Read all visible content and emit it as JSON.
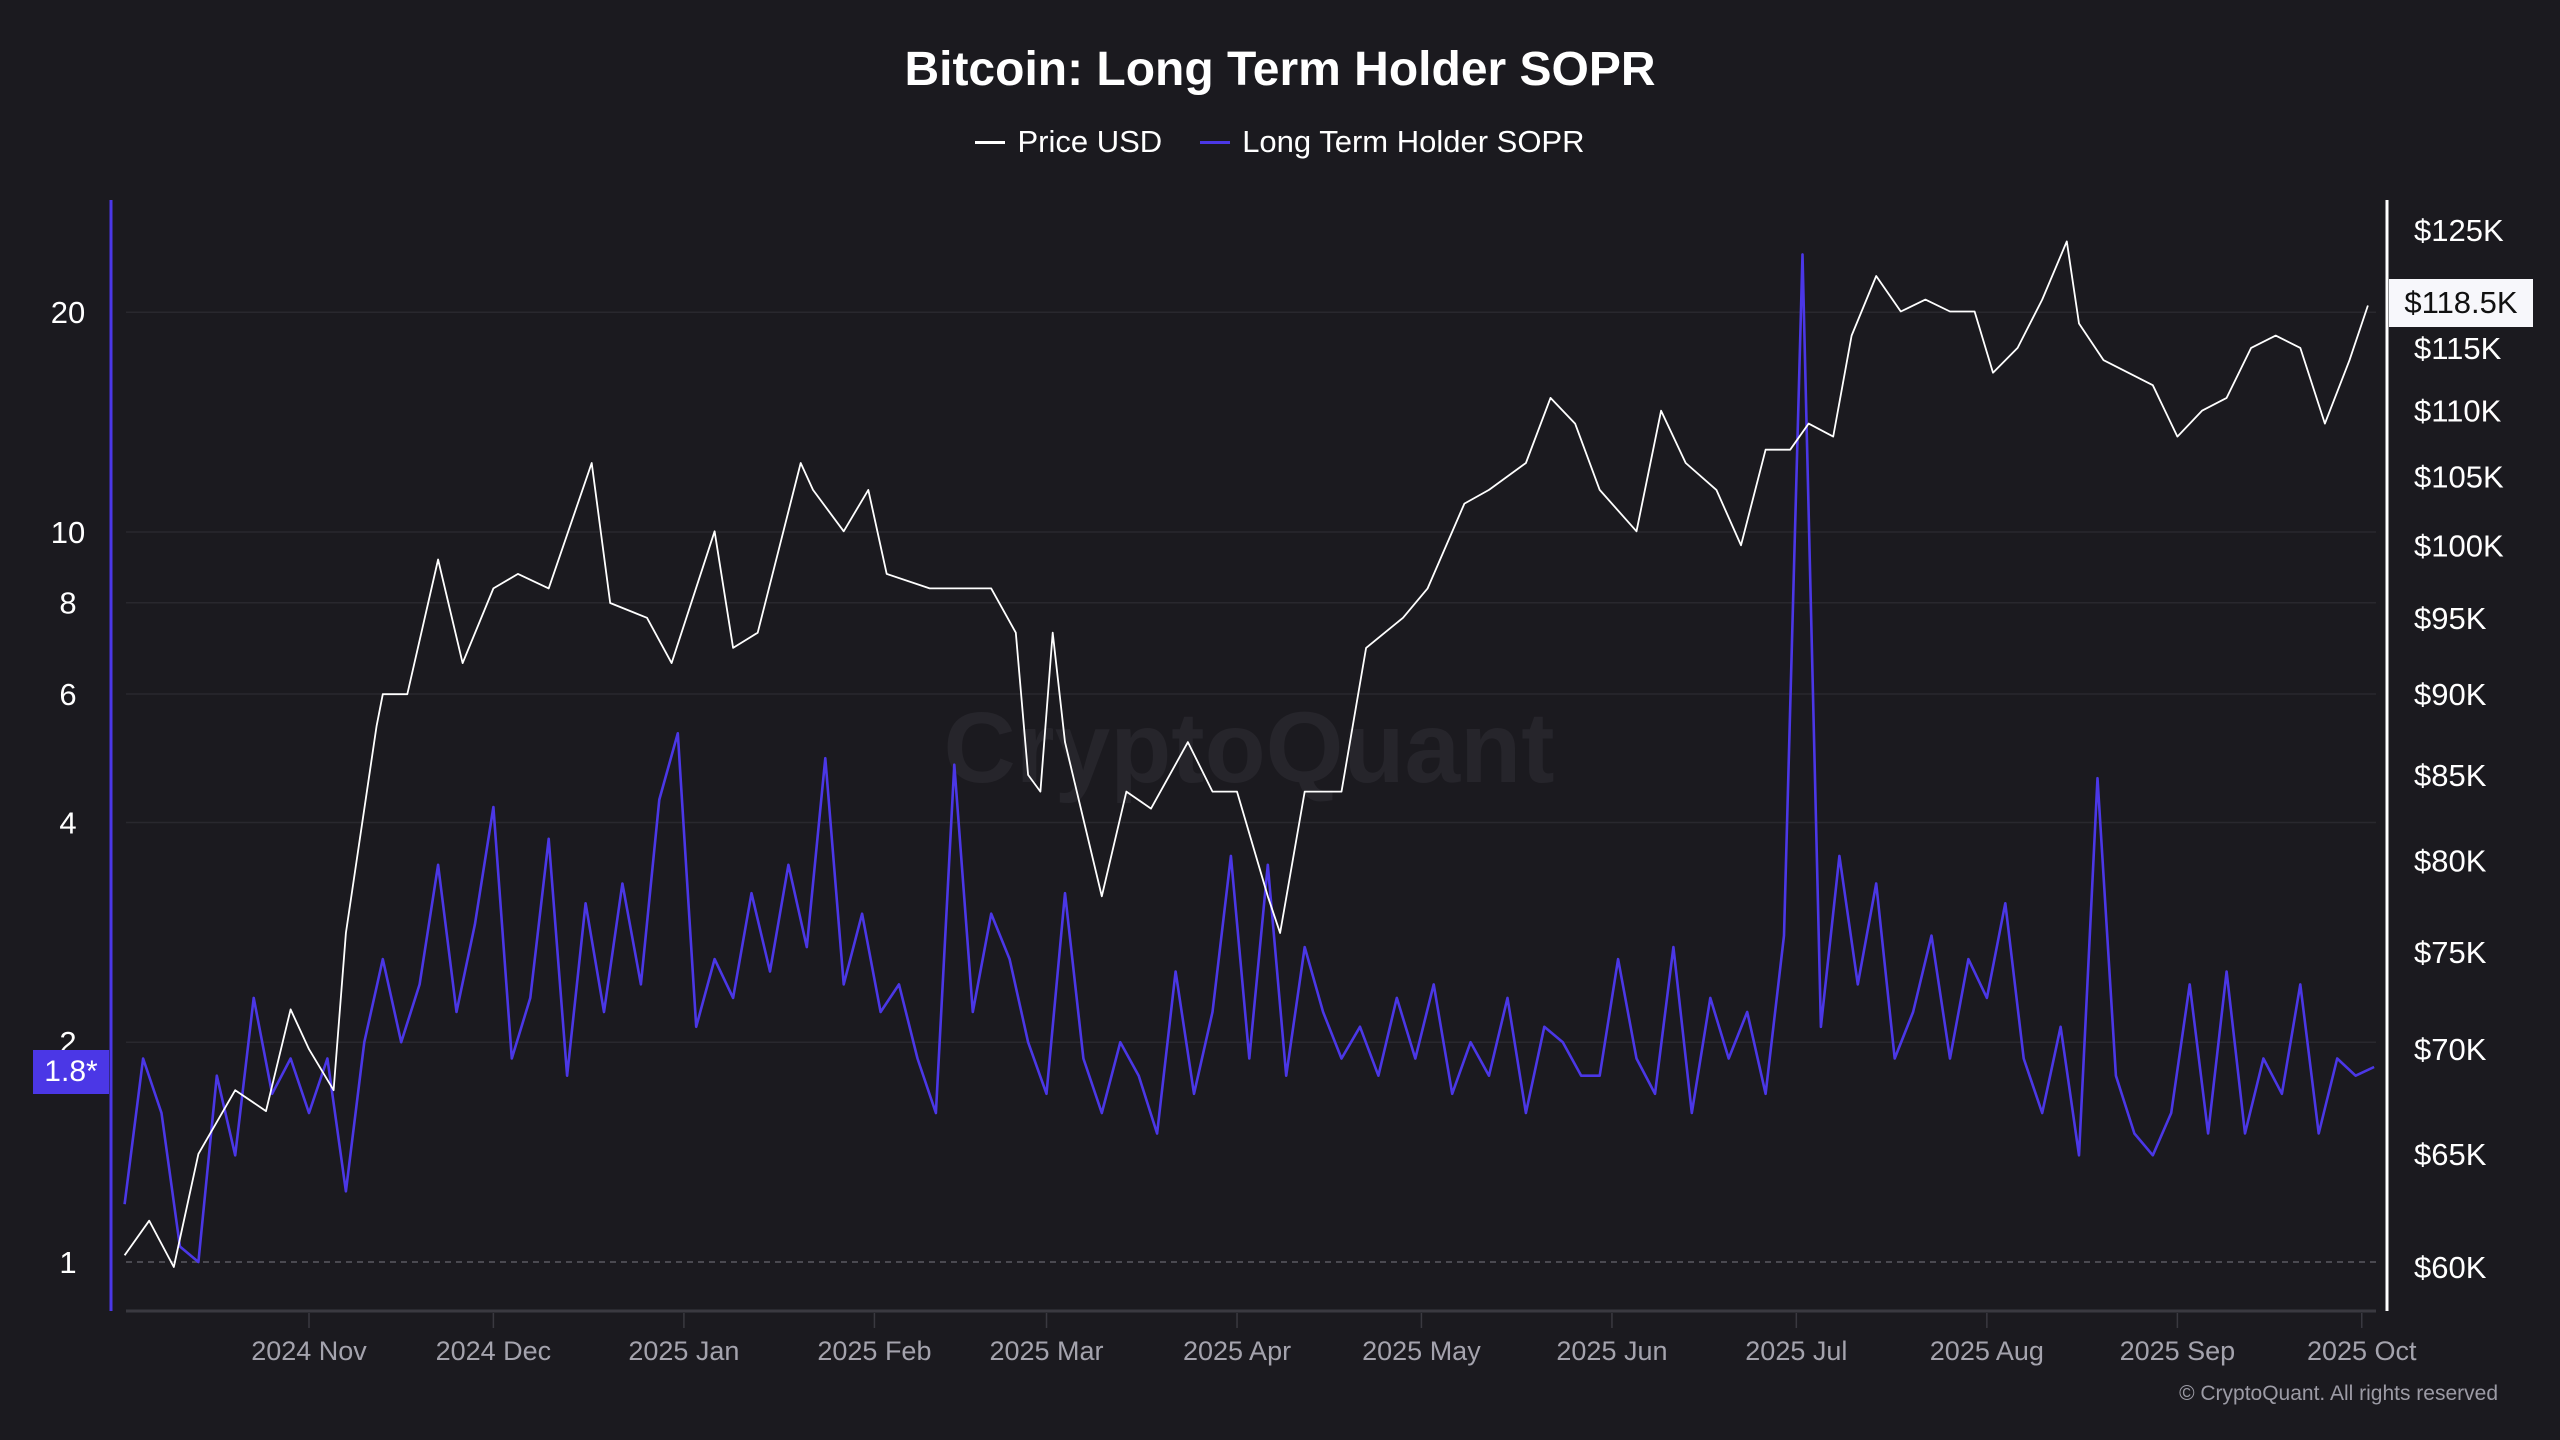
{
  "chart_data": {
    "type": "line",
    "title": "Bitcoin: Long Term Holder SOPR",
    "watermark": "CryptoQuant",
    "copyright": "© CryptoQuant. All rights reserved",
    "legend": [
      {
        "name": "Price USD",
        "color": "#ffffff"
      },
      {
        "name": "Long Term Holder SOPR",
        "color": "#4b37e6"
      }
    ],
    "legend_position": "top-center",
    "x_ticks": [
      {
        "label": "2024 Nov",
        "date": "2024-11-01"
      },
      {
        "label": "2024 Dec",
        "date": "2024-12-01"
      },
      {
        "label": "2025 Jan",
        "date": "2025-01-01"
      },
      {
        "label": "2025 Feb",
        "date": "2025-02-01"
      },
      {
        "label": "2025 Mar",
        "date": "2025-03-01"
      },
      {
        "label": "2025 Apr",
        "date": "2025-04-01"
      },
      {
        "label": "2025 May",
        "date": "2025-05-01"
      },
      {
        "label": "2025 Jun",
        "date": "2025-06-01"
      },
      {
        "label": "2025 Jul",
        "date": "2025-07-01"
      },
      {
        "label": "2025 Aug",
        "date": "2025-08-01"
      },
      {
        "label": "2025 Sep",
        "date": "2025-09-01"
      },
      {
        "label": "2025 Oct",
        "date": "2025-10-01"
      }
    ],
    "x_range": [
      "2024-10-02",
      "2025-10-02"
    ],
    "left_axis": {
      "scale": "log",
      "ticks": [
        1,
        2,
        4,
        6,
        8,
        10,
        20
      ],
      "tick_labels": [
        "1",
        "2",
        "4",
        "6",
        "8",
        "10",
        "20"
      ],
      "current_value_label": "1.8*",
      "reference_line": 1
    },
    "right_axis": {
      "scale": "log",
      "ticks": [
        60,
        65,
        70,
        75,
        80,
        85,
        90,
        95,
        100,
        105,
        110,
        115,
        125
      ],
      "tick_labels": [
        "$60K",
        "$65K",
        "$70K",
        "$75K",
        "$80K",
        "$85K",
        "$90K",
        "$95K",
        "$100K",
        "$105K",
        "$110K",
        "$115K",
        "$125K"
      ],
      "current_value_label": "$118.5K",
      "unit": "thousand USD"
    },
    "series": [
      {
        "name": "Long Term Holder SOPR",
        "axis": "left",
        "start": "2024-10-02",
        "step_days": 3,
        "values": [
          1.2,
          1.9,
          1.6,
          1.05,
          1.0,
          1.8,
          1.4,
          2.3,
          1.7,
          1.9,
          1.6,
          1.9,
          1.25,
          2.0,
          2.6,
          2.0,
          2.4,
          3.5,
          2.2,
          2.9,
          4.2,
          1.9,
          2.3,
          3.8,
          1.8,
          3.1,
          2.2,
          3.3,
          2.4,
          4.3,
          5.3,
          2.1,
          2.6,
          2.3,
          3.2,
          2.5,
          3.5,
          2.7,
          4.9,
          2.4,
          3.0,
          2.2,
          2.4,
          1.9,
          1.6,
          4.8,
          2.2,
          3.0,
          2.6,
          2.0,
          1.7,
          3.2,
          1.9,
          1.6,
          2.0,
          1.8,
          1.5,
          2.5,
          1.7,
          2.2,
          3.6,
          1.9,
          3.5,
          1.8,
          2.7,
          2.2,
          1.9,
          2.1,
          1.8,
          2.3,
          1.9,
          2.4,
          1.7,
          2.0,
          1.8,
          2.3,
          1.6,
          2.1,
          2.0,
          1.8,
          1.8,
          2.6,
          1.9,
          1.7,
          2.7,
          1.6,
          2.3,
          1.9,
          2.2,
          1.7,
          2.8,
          24,
          2.1,
          3.6,
          2.4,
          3.3,
          1.9,
          2.2,
          2.8,
          1.9,
          2.6,
          2.3,
          3.1,
          1.9,
          1.6,
          2.1,
          1.4,
          4.6,
          1.8,
          1.5,
          1.4,
          1.6,
          2.4,
          1.5,
          2.5,
          1.5,
          1.9,
          1.7,
          2.4,
          1.5,
          1.9,
          1.8,
          1.85
        ]
      },
      {
        "name": "Price USD",
        "axis": "right",
        "unit": "thousand USD",
        "points": [
          [
            "2024-10-02",
            60.5
          ],
          [
            "2024-10-06",
            62
          ],
          [
            "2024-10-10",
            60
          ],
          [
            "2024-10-14",
            65
          ],
          [
            "2024-10-20",
            68
          ],
          [
            "2024-10-25",
            67
          ],
          [
            "2024-10-29",
            72
          ],
          [
            "2024-11-01",
            70
          ],
          [
            "2024-11-05",
            68
          ],
          [
            "2024-11-07",
            76
          ],
          [
            "2024-11-12",
            88
          ],
          [
            "2024-11-13",
            90
          ],
          [
            "2024-11-17",
            90
          ],
          [
            "2024-11-22",
            99
          ],
          [
            "2024-11-26",
            92
          ],
          [
            "2024-12-01",
            97
          ],
          [
            "2024-12-05",
            98
          ],
          [
            "2024-12-10",
            97
          ],
          [
            "2024-12-17",
            106
          ],
          [
            "2024-12-20",
            96
          ],
          [
            "2024-12-26",
            95
          ],
          [
            "2024-12-30",
            92
          ],
          [
            "2025-01-06",
            101
          ],
          [
            "2025-01-09",
            93
          ],
          [
            "2025-01-13",
            94
          ],
          [
            "2025-01-20",
            106
          ],
          [
            "2025-01-22",
            104
          ],
          [
            "2025-01-27",
            101
          ],
          [
            "2025-01-31",
            104
          ],
          [
            "2025-02-03",
            98
          ],
          [
            "2025-02-10",
            97
          ],
          [
            "2025-02-20",
            97
          ],
          [
            "2025-02-24",
            94
          ],
          [
            "2025-02-26",
            85
          ],
          [
            "2025-02-28",
            84
          ],
          [
            "2025-03-02",
            94
          ],
          [
            "2025-03-04",
            87
          ],
          [
            "2025-03-10",
            78
          ],
          [
            "2025-03-14",
            84
          ],
          [
            "2025-03-18",
            83
          ],
          [
            "2025-03-24",
            87
          ],
          [
            "2025-03-28",
            84
          ],
          [
            "2025-04-01",
            84
          ],
          [
            "2025-04-06",
            78
          ],
          [
            "2025-04-08",
            76
          ],
          [
            "2025-04-12",
            84
          ],
          [
            "2025-04-18",
            84
          ],
          [
            "2025-04-22",
            93
          ],
          [
            "2025-04-28",
            95
          ],
          [
            "2025-05-02",
            97
          ],
          [
            "2025-05-08",
            103
          ],
          [
            "2025-05-12",
            104
          ],
          [
            "2025-05-18",
            106
          ],
          [
            "2025-05-22",
            111
          ],
          [
            "2025-05-26",
            109
          ],
          [
            "2025-05-30",
            104
          ],
          [
            "2025-06-05",
            101
          ],
          [
            "2025-06-09",
            110
          ],
          [
            "2025-06-13",
            106
          ],
          [
            "2025-06-18",
            104
          ],
          [
            "2025-06-22",
            100
          ],
          [
            "2025-06-26",
            107
          ],
          [
            "2025-06-30",
            107
          ],
          [
            "2025-07-03",
            109
          ],
          [
            "2025-07-07",
            108
          ],
          [
            "2025-07-10",
            116
          ],
          [
            "2025-07-14",
            121
          ],
          [
            "2025-07-18",
            118
          ],
          [
            "2025-07-22",
            119
          ],
          [
            "2025-07-26",
            118
          ],
          [
            "2025-07-30",
            118
          ],
          [
            "2025-08-02",
            113
          ],
          [
            "2025-08-06",
            115
          ],
          [
            "2025-08-10",
            119
          ],
          [
            "2025-08-14",
            124
          ],
          [
            "2025-08-16",
            117
          ],
          [
            "2025-08-20",
            114
          ],
          [
            "2025-08-24",
            113
          ],
          [
            "2025-08-28",
            112
          ],
          [
            "2025-09-01",
            108
          ],
          [
            "2025-09-05",
            110
          ],
          [
            "2025-09-09",
            111
          ],
          [
            "2025-09-13",
            115
          ],
          [
            "2025-09-17",
            116
          ],
          [
            "2025-09-21",
            115
          ],
          [
            "2025-09-25",
            109
          ],
          [
            "2025-09-29",
            114
          ],
          [
            "2025-10-02",
            118.5
          ]
        ]
      }
    ]
  }
}
